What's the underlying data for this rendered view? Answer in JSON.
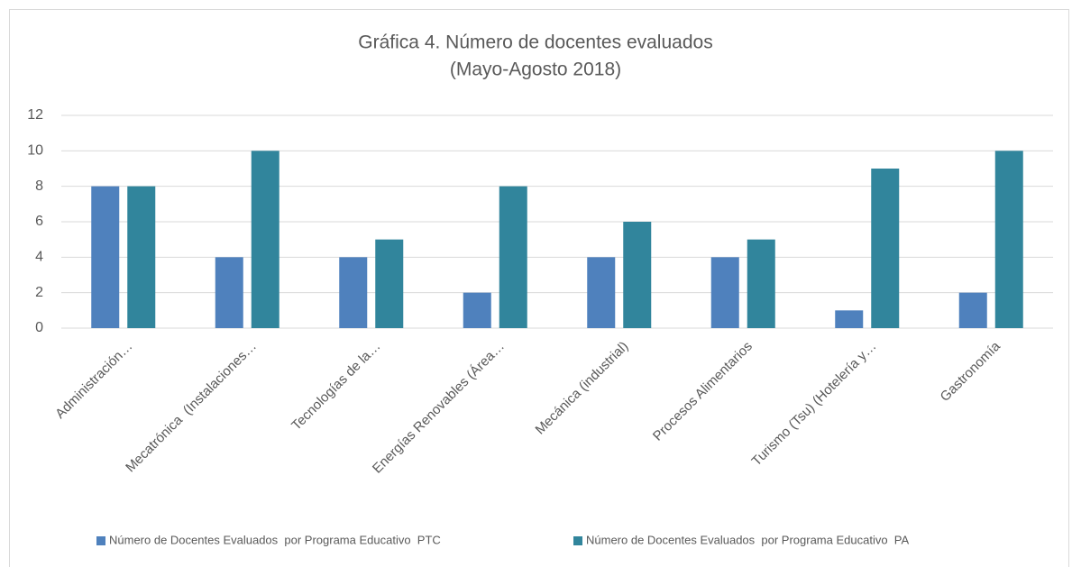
{
  "chart_data": {
    "type": "bar",
    "title": "Gráfica 4. Número de docentes evaluados",
    "subtitle": "(Mayo-Agosto 2018)",
    "categories": [
      "Administración…",
      "Mecatrónica  (Instalaciones…",
      "Tecnologías de la…",
      "Energías Renovables (Área…",
      "Mecánica (industrial)",
      "Procesos Alimentarios",
      "Turismo (Tsu) (Hotelería y…",
      "Gastronomía"
    ],
    "series": [
      {
        "name": "Número de Docentes Evaluados  por Programa Educativo  PTC",
        "color": "#4f81bd",
        "values": [
          8,
          4,
          4,
          2,
          4,
          4,
          1,
          2
        ]
      },
      {
        "name": "Número de Docentes Evaluados  por Programa Educativo  PA",
        "color": "#31859c",
        "values": [
          8,
          10,
          5,
          8,
          6,
          5,
          9,
          10
        ]
      }
    ],
    "ylim": [
      0,
      12
    ],
    "yticks": [
      0,
      2,
      4,
      6,
      8,
      10,
      12
    ],
    "grid": true,
    "legend": "bottom"
  }
}
